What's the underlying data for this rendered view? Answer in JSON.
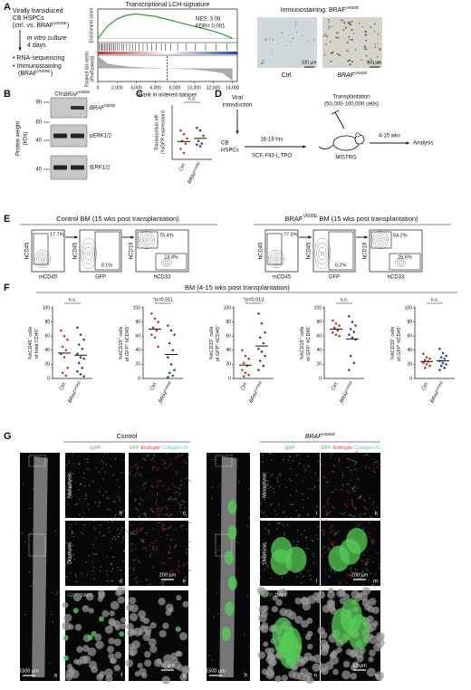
{
  "panel_labels": [
    "A",
    "B",
    "C",
    "D",
    "E",
    "F",
    "G"
  ],
  "A": {
    "workflow": {
      "source": [
        "Virally transduced",
        "CB HSPCs",
        [
          "(ctrl. vs. BRAF",
          "V600E",
          ")"
        ]
      ],
      "culture": [
        "in vitro culture",
        "4 days"
      ],
      "readouts": [
        "• RNA-sequencing",
        "• Immunostaining",
        [
          "(BRAF",
          "V600E",
          ")"
        ]
      ]
    },
    "gsea": {
      "title": "Transcriptional LCH-signature",
      "stats": [
        "NES: 3.06",
        "FDR< 0.001"
      ],
      "y_label_top": "Enrichment score",
      "y_label_bottom": [
        "Ranked list metric",
        "(PreRanked)"
      ],
      "x_label": "Rank in ordered dataset",
      "xlim": [
        0,
        14500
      ],
      "xticks": [
        0,
        {
          "value": 2000,
          "label": "2,000"
        },
        {
          "value": 4000,
          "label": "4,000"
        },
        {
          "value": 6000,
          "label": "6,000"
        },
        {
          "value": 8000,
          "label": "8,000"
        },
        {
          "value": 10000,
          "label": "10,000"
        },
        {
          "value": 12000,
          "label": "12,000"
        },
        {
          "value": 14000,
          "label": "14,000"
        }
      ],
      "rank": [
        0,
        1000,
        2000,
        3000,
        4000,
        5000,
        6000,
        7000,
        8000,
        9000,
        10000,
        11000,
        12000,
        13000,
        14000
      ],
      "es": [
        0,
        0.2,
        0.32,
        0.38,
        0.4,
        0.38,
        0.36,
        0.32,
        0.28,
        0.24,
        0.2,
        0.16,
        0.12,
        0.07,
        0
      ],
      "ylim": [
        -0.05,
        0.45
      ],
      "metric": [
        3,
        1.2,
        0.8,
        0.5,
        0.3,
        0.2,
        0.1,
        0,
        -0.1,
        -0.2,
        -0.3,
        -0.5,
        -0.8,
        -1.2,
        -3
      ],
      "metric_lim": [
        -3,
        3
      ],
      "hits": [
        150,
        300,
        420,
        560,
        700,
        850,
        980,
        1150,
        1300,
        1480,
        1650,
        1800,
        2000,
        2250,
        2500,
        2700,
        3000,
        3300,
        3600,
        3900,
        4300,
        4700,
        5100,
        5600,
        6100,
        6600,
        7000,
        7600,
        8300,
        9200,
        10100,
        11200,
        12300,
        13400
      ],
      "cutoff": 7200
    },
    "immunostaining": {
      "title": [
        "Immunostaining: BRAF",
        "V600E"
      ],
      "groups": [
        "Ctrl.",
        [
          "BRAF",
          "V600E"
        ]
      ],
      "scale_bar": "100 µm"
    }
  },
  "B": {
    "columns": [
      "Ctrl.",
      [
        "BRAF",
        "V600E"
      ]
    ],
    "y_label": [
      "Protein weight",
      "(kDa)"
    ],
    "markers": [
      90,
      60,
      40,
      40
    ],
    "bands": [
      [
        "BRAF",
        "V600E"
      ],
      "pERK1/2",
      "tERK1/2"
    ]
  },
  "C": {
    "y_label": [
      "Transduction eff.",
      "(%GFP expression)"
    ],
    "annotation": "n.s.",
    "categories": [
      "Ctrl.",
      [
        "BRAF",
        "V600E"
      ]
    ],
    "colors": [
      "#c0392b",
      "#2b4c8c"
    ],
    "ylim": [
      0,
      100
    ],
    "groups": [
      [
        55,
        48,
        40,
        35,
        30,
        20,
        12
      ],
      [
        60,
        55,
        45,
        35,
        30,
        28,
        25
      ]
    ],
    "means": [
      34,
      40
    ]
  },
  "D": {
    "viral": [
      "Viral",
      "transduction"
    ],
    "cells": [
      "CB",
      "HSPCs"
    ],
    "time": "16-19 hrs",
    "cytokines": "SCF, Flt3-L,TPO",
    "transplant": [
      "Transplantation",
      "(50,000-100,000 cells)"
    ],
    "mouse": "MISTRG",
    "duration": "4-15 wks",
    "analysis": "Analysis"
  },
  "E": {
    "groups": [
      {
        "title": "Control BM (15 wks post transplantation)",
        "gates": [
          "17.7%",
          "0.1%",
          "75.4%",
          "13.4%"
        ]
      },
      {
        "title": [
          "BRAF",
          "V600E",
          " BM (15 wks post transplantation)"
        ],
        "gates": [
          "77.5%",
          "0.2%",
          "64.2%",
          "25.6%"
        ]
      }
    ],
    "y_axes": [
      "hCD45",
      "hCD45",
      "hCD19"
    ],
    "x_axes": [
      "mCD45",
      "GFP",
      "hCD33"
    ]
  },
  "F": {
    "title": "BM (4-15 wks post transplantation)",
    "categories": [
      "Ctrl.",
      [
        "BRAF",
        "V600E"
      ]
    ],
    "colors": [
      "#c0392b",
      "#2b4c8c"
    ],
    "ylim": [
      0,
      100
    ],
    "yticks": [
      0,
      20,
      40,
      60,
      80,
      100
    ],
    "plots": [
      {
        "y_label": [
          [
            "%hCD45",
            "+",
            " cells"
          ],
          [
            "of total CD45",
            "+"
          ]
        ],
        "annotation": "n.s.",
        "groups": [
          [
            68,
            60,
            55,
            45,
            40,
            35,
            30,
            15,
            8,
            4
          ],
          [
            72,
            62,
            55,
            48,
            42,
            35,
            30,
            28,
            22,
            15,
            10,
            6,
            3
          ]
        ],
        "means": [
          36,
          33
        ]
      },
      {
        "y_label": [
          [
            "%hCD19",
            "+",
            " cells"
          ],
          [
            "of GFP",
            "+",
            " hCD45",
            "+"
          ]
        ],
        "annotation": "*p=0.011",
        "groups": [
          [
            92,
            85,
            80,
            72,
            68,
            62,
            58,
            45
          ],
          [
            75,
            68,
            62,
            50,
            40,
            30,
            20,
            12,
            8,
            4,
            2
          ]
        ],
        "means": [
          70,
          34
        ]
      },
      {
        "y_label": [
          [
            "%hCD33",
            "+",
            " cells"
          ],
          [
            "of GFP",
            "+",
            " hCD45",
            "+"
          ]
        ],
        "annotation": "*p=0.013",
        "groups": [
          [
            40,
            32,
            28,
            22,
            18,
            12,
            8,
            5,
            3
          ],
          [
            92,
            78,
            65,
            58,
            50,
            42,
            38,
            32,
            25,
            18,
            12
          ]
        ],
        "means": [
          19,
          46
        ]
      },
      {
        "y_label": [
          [
            "%hCD19",
            "+",
            " cells"
          ],
          [
            "of GFP",
            "-",
            " hCD45",
            "+"
          ]
        ],
        "annotation": "n.s.",
        "groups": [
          [
            82,
            78,
            75,
            72,
            68,
            65,
            62,
            60
          ],
          [
            88,
            80,
            75,
            70,
            66,
            62,
            58,
            55,
            32,
            22,
            12
          ]
        ],
        "means": [
          70,
          56
        ]
      },
      {
        "y_label": [
          [
            "%hCD33",
            "+",
            " cells"
          ],
          [
            "of GFP",
            "-",
            " hCD45",
            "+"
          ]
        ],
        "annotation": "n.s.",
        "groups": [
          [
            35,
            30,
            28,
            26,
            24,
            22,
            20,
            18,
            15
          ],
          [
            42,
            36,
            32,
            30,
            28,
            25,
            22,
            20,
            18,
            15,
            12
          ]
        ],
        "means": [
          24,
          25
        ]
      }
    ]
  },
  "G": {
    "titles": [
      "Control",
      [
        "BRAF",
        "V600E"
      ]
    ],
    "column": "GFP",
    "merge": [
      "GFP",
      "Endoglin",
      "Collagen IV"
    ],
    "merge_colors": [
      "#3c3",
      "#e33",
      "#4cc"
    ],
    "rows": [
      "Metaphysis",
      "Diaphysis"
    ],
    "zoom": [
      "GFP",
      "DAPI"
    ],
    "zoom_colors": [
      "#3c3",
      "#ddd"
    ],
    "letters": [
      "a",
      "b",
      "c",
      "d",
      "e",
      "f",
      "g",
      "h",
      "i",
      "k",
      "l",
      "m",
      "n",
      "o"
    ],
    "scale_bars": [
      "1500 µm",
      "200 µm",
      "10 µm"
    ]
  }
}
